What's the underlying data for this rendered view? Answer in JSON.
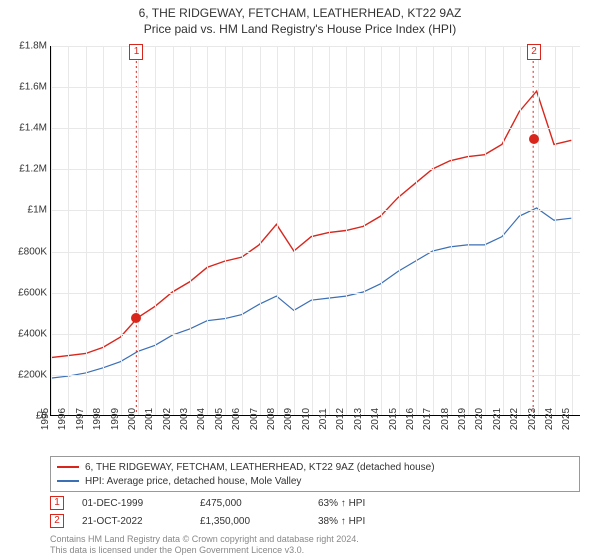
{
  "title": "6, THE RIDGEWAY, FETCHAM, LEATHERHEAD, KT22 9AZ",
  "subtitle": "Price paid vs. HM Land Registry's House Price Index (HPI)",
  "chart": {
    "type": "line",
    "x_years": [
      1995,
      1996,
      1997,
      1998,
      1999,
      2000,
      2001,
      2002,
      2003,
      2004,
      2005,
      2006,
      2007,
      2008,
      2009,
      2010,
      2011,
      2012,
      2013,
      2014,
      2015,
      2016,
      2017,
      2018,
      2019,
      2020,
      2021,
      2022,
      2023,
      2024,
      2025
    ],
    "xlim": [
      1995,
      2025.5
    ],
    "ylim": [
      0,
      1800000
    ],
    "ytick_step": 200000,
    "ytick_labels": [
      "£0",
      "£200K",
      "£400K",
      "£600K",
      "£800K",
      "£1M",
      "£1.2M",
      "£1.4M",
      "£1.6M",
      "£1.8M"
    ],
    "grid_color": "#e8e8e8",
    "background": "#ffffff",
    "label_fontsize": 10,
    "series": [
      {
        "name": "property",
        "label": "6, THE RIDGEWAY, FETCHAM, LEATHERHEAD, KT22 9AZ (detached house)",
        "color": "#d9261c",
        "line_width": 1.4,
        "values": [
          280000,
          290000,
          300000,
          330000,
          380000,
          475000,
          530000,
          600000,
          650000,
          720000,
          750000,
          770000,
          830000,
          930000,
          800000,
          870000,
          890000,
          900000,
          920000,
          970000,
          1060000,
          1130000,
          1200000,
          1240000,
          1260000,
          1270000,
          1320000,
          1480000,
          1580000,
          1320000,
          1340000
        ]
      },
      {
        "name": "hpi",
        "label": "HPI: Average price, detached house, Mole Valley",
        "color": "#3b6fb6",
        "line_width": 1.2,
        "values": [
          180000,
          190000,
          205000,
          230000,
          260000,
          310000,
          340000,
          390000,
          420000,
          460000,
          470000,
          490000,
          540000,
          580000,
          510000,
          560000,
          570000,
          580000,
          600000,
          640000,
          700000,
          750000,
          800000,
          820000,
          830000,
          830000,
          870000,
          970000,
          1010000,
          950000,
          960000
        ]
      }
    ],
    "markers": [
      {
        "n": "1",
        "year": 1999.92,
        "value": 475000,
        "color": "#d9261c"
      },
      {
        "n": "2",
        "year": 2022.8,
        "value": 1350000,
        "color": "#d9261c"
      }
    ]
  },
  "legend": {
    "items": [
      {
        "color": "#d9261c",
        "label": "6, THE RIDGEWAY, FETCHAM, LEATHERHEAD, KT22 9AZ (detached house)"
      },
      {
        "color": "#3b6fb6",
        "label": "HPI: Average price, detached house, Mole Valley"
      }
    ]
  },
  "events": [
    {
      "n": "1",
      "color": "#d9261c",
      "date": "01-DEC-1999",
      "price": "£475,000",
      "pct": "63% ↑ HPI"
    },
    {
      "n": "2",
      "color": "#d9261c",
      "date": "21-OCT-2022",
      "price": "£1,350,000",
      "pct": "38% ↑ HPI"
    }
  ],
  "license": {
    "line1": "Contains HM Land Registry data © Crown copyright and database right 2024.",
    "line2": "This data is licensed under the Open Government Licence v3.0."
  }
}
